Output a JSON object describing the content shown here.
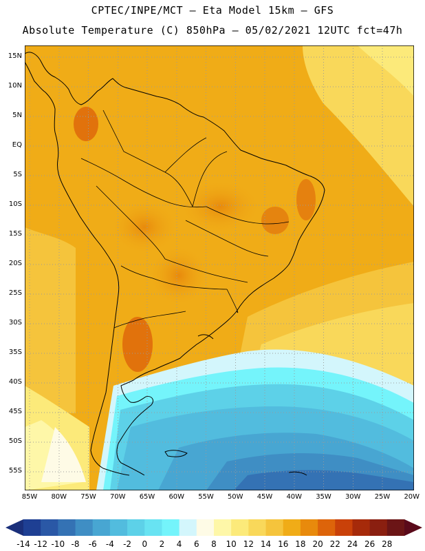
{
  "header": {
    "line1": "CPTEC/INPE/MCT –  Eta Model 15km – GFS",
    "line2": "Absolute Temperature (C) 850hPa – 05/02/2021 12UTC fct=47h"
  },
  "axes": {
    "lat_labels": [
      "15N",
      "10N",
      "5N",
      "EQ",
      "5S",
      "10S",
      "15S",
      "20S",
      "25S",
      "30S",
      "35S",
      "40S",
      "45S",
      "50S",
      "55S"
    ],
    "lon_labels": [
      "85W",
      "80W",
      "75W",
      "70W",
      "65W",
      "60W",
      "55W",
      "50W",
      "45W",
      "40W",
      "35W",
      "30W",
      "25W",
      "20W"
    ]
  },
  "colorbar": {
    "labels": [
      "-14",
      "-12",
      "-10",
      "-8",
      "-6",
      "-4",
      "-2",
      "0",
      "2",
      "4",
      "6",
      "8",
      "10",
      "12",
      "14",
      "16",
      "18",
      "20",
      "22",
      "24",
      "26",
      "28"
    ],
    "colors": [
      "#1e3f93",
      "#2a58a6",
      "#3472b4",
      "#3f8ec4",
      "#48a6d2",
      "#52bcde",
      "#5dd1e8",
      "#68e3f2",
      "#74f4fb",
      "#d3f6fc",
      "#fefbe6",
      "#fef7a8",
      "#fcea7a",
      "#f9d85a",
      "#f5c43c",
      "#f0ac17",
      "#e88a0c",
      "#dd640a",
      "#c94109",
      "#a62a0a",
      "#8a1f10",
      "#6b1516"
    ],
    "arrow_left": "#1a2f7a",
    "arrow_right": "#5a0a1a"
  }
}
